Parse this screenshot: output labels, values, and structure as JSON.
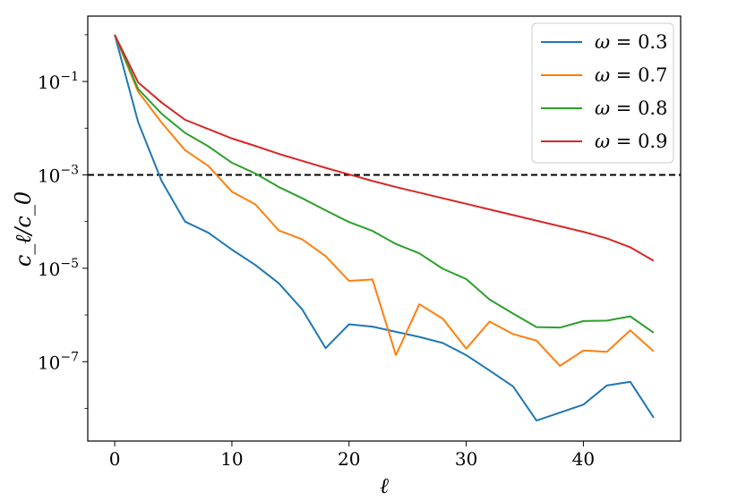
{
  "chart_data": {
    "type": "line",
    "title": "",
    "xlabel": "ℓ",
    "ylabel": "c_ℓ/c_0",
    "yscale": "log",
    "xlim": [
      -2.3,
      48.3
    ],
    "ylim": [
      -8.7,
      0.4
    ],
    "x_ticks": [
      0,
      10,
      20,
      30,
      40
    ],
    "y_ticks": [
      {
        "base": "10",
        "exp": "−1",
        "value": -1
      },
      {
        "base": "10",
        "exp": "−3",
        "value": -3
      },
      {
        "base": "10",
        "exp": "−5",
        "value": -5
      },
      {
        "base": "10",
        "exp": "−7",
        "value": -7
      }
    ],
    "hline": {
      "value": 0.001,
      "log10": -3,
      "style": "dashed",
      "color": "#000000"
    },
    "legend_position": "top-right",
    "x": [
      0,
      2,
      4,
      6,
      8,
      10,
      12,
      14,
      16,
      18,
      20,
      22,
      24,
      26,
      28,
      30,
      32,
      34,
      36,
      38,
      40,
      42,
      44,
      46
    ],
    "series": [
      {
        "label_symbol": "ω",
        "label_value": "= 0.3",
        "color": "#1f77b4",
        "log10_values": [
          0.0,
          -1.87,
          -3.13,
          -4.0,
          -4.24,
          -4.6,
          -4.93,
          -5.32,
          -5.88,
          -6.71,
          -6.2,
          -6.25,
          -6.36,
          -6.47,
          -6.6,
          -6.86,
          -7.19,
          -7.53,
          -8.26,
          -8.09,
          -7.92,
          -7.51,
          -7.43,
          -8.2
        ]
      },
      {
        "label_symbol": "ω",
        "label_value": "= 0.7",
        "color": "#ff7f0e",
        "log10_values": [
          0.0,
          -1.22,
          -1.88,
          -2.47,
          -2.81,
          -3.36,
          -3.63,
          -4.19,
          -4.38,
          -4.74,
          -5.27,
          -5.24,
          -6.86,
          -5.77,
          -6.08,
          -6.72,
          -6.14,
          -6.41,
          -6.55,
          -7.09,
          -6.76,
          -6.79,
          -6.33,
          -6.78
        ]
      },
      {
        "label_symbol": "ω",
        "label_value": "= 0.8",
        "color": "#2ca02c",
        "log10_values": [
          0.0,
          -1.16,
          -1.69,
          -2.1,
          -2.39,
          -2.74,
          -2.97,
          -3.26,
          -3.5,
          -3.76,
          -4.01,
          -4.2,
          -4.48,
          -4.68,
          -5.01,
          -5.23,
          -5.67,
          -5.97,
          -6.26,
          -6.27,
          -6.13,
          -6.12,
          -6.03,
          -6.38
        ]
      },
      {
        "label_symbol": "ω",
        "label_value": "= 0.9",
        "color": "#d62728",
        "log10_values": [
          0.0,
          -1.02,
          -1.45,
          -1.82,
          -2.02,
          -2.22,
          -2.38,
          -2.55,
          -2.7,
          -2.85,
          -2.99,
          -3.13,
          -3.26,
          -3.38,
          -3.5,
          -3.62,
          -3.74,
          -3.86,
          -3.98,
          -4.1,
          -4.22,
          -4.36,
          -4.55,
          -4.84
        ]
      }
    ]
  }
}
